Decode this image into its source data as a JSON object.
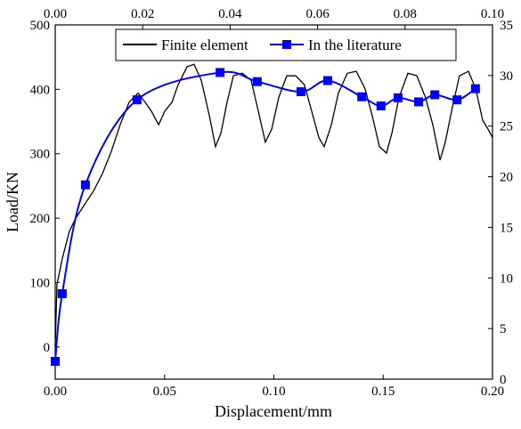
{
  "chart_data": {
    "type": "line",
    "xlabel": "Displacement/mm",
    "ylabel": "Load/KN",
    "xlim": [
      0,
      0.2
    ],
    "xticks": [
      {
        "value": 0,
        "label": "0.00"
      },
      0.05,
      {
        "value": 0.1,
        "label": "0.10"
      },
      0.15,
      {
        "value": 0.2,
        "label": "0.20"
      }
    ],
    "x2lim": [
      0,
      0.1
    ],
    "x2ticks": [
      {
        "value": 0,
        "label": "0.00"
      },
      0.02,
      0.04,
      0.06,
      0.08,
      {
        "value": 0.1,
        "label": "0.10"
      }
    ],
    "ylim": [
      -50,
      500
    ],
    "yticks": [
      0,
      100,
      200,
      300,
      400,
      500
    ],
    "y2lim": [
      0,
      35
    ],
    "y2ticks": [
      0,
      5,
      10,
      15,
      20,
      25,
      30,
      35
    ],
    "series": [
      {
        "name": "Finite element",
        "color": "#000000",
        "x": [
          0,
          0.0008,
          0.0033,
          0.0065,
          0.0094,
          0.0134,
          0.0175,
          0.0216,
          0.0257,
          0.0297,
          0.0338,
          0.0379,
          0.0411,
          0.044,
          0.0473,
          0.0501,
          0.0534,
          0.0562,
          0.0603,
          0.0635,
          0.0668,
          0.0705,
          0.0733,
          0.0758,
          0.0786,
          0.0815,
          0.0855,
          0.0896,
          0.0929,
          0.0961,
          0.099,
          0.1022,
          0.1059,
          0.11,
          0.114,
          0.1173,
          0.1206,
          0.123,
          0.1263,
          0.1295,
          0.1336,
          0.1377,
          0.1417,
          0.145,
          0.1483,
          0.1515,
          0.154,
          0.1572,
          0.1613,
          0.1654,
          0.1694,
          0.1727,
          0.176,
          0.1784,
          0.1817,
          0.1849,
          0.189,
          0.1923,
          0.1955,
          0.198,
          0.2
        ],
        "values": [
          0,
          97,
          138,
          180,
          200,
          221,
          242,
          269,
          304,
          345,
          380,
          394,
          380,
          366,
          345,
          366,
          380,
          407,
          435,
          439,
          414,
          359,
          311,
          332,
          380,
          421,
          425,
          414,
          366,
          318,
          338,
          387,
          421,
          421,
          407,
          366,
          325,
          311,
          345,
          394,
          425,
          428,
          401,
          359,
          311,
          301,
          332,
          387,
          425,
          421,
          387,
          345,
          290,
          318,
          373,
          421,
          428,
          401,
          352,
          338,
          325
        ]
      },
      {
        "name": "In the literature",
        "color": "#0000ff",
        "axis": "y2",
        "xaxis": "x2",
        "x": [
          0,
          0.0016,
          0.0069,
          0.0187,
          0.0377,
          0.0462,
          0.0562,
          0.0623,
          0.0701,
          0.0745,
          0.0784,
          0.0831,
          0.0868,
          0.0919,
          0.0961
        ],
        "values": [
          1.76,
          8.44,
          19.2,
          27.6,
          30.3,
          29.4,
          28.4,
          29.5,
          27.9,
          27.0,
          27.8,
          27.4,
          28.1,
          27.6,
          28.7
        ]
      }
    ]
  }
}
